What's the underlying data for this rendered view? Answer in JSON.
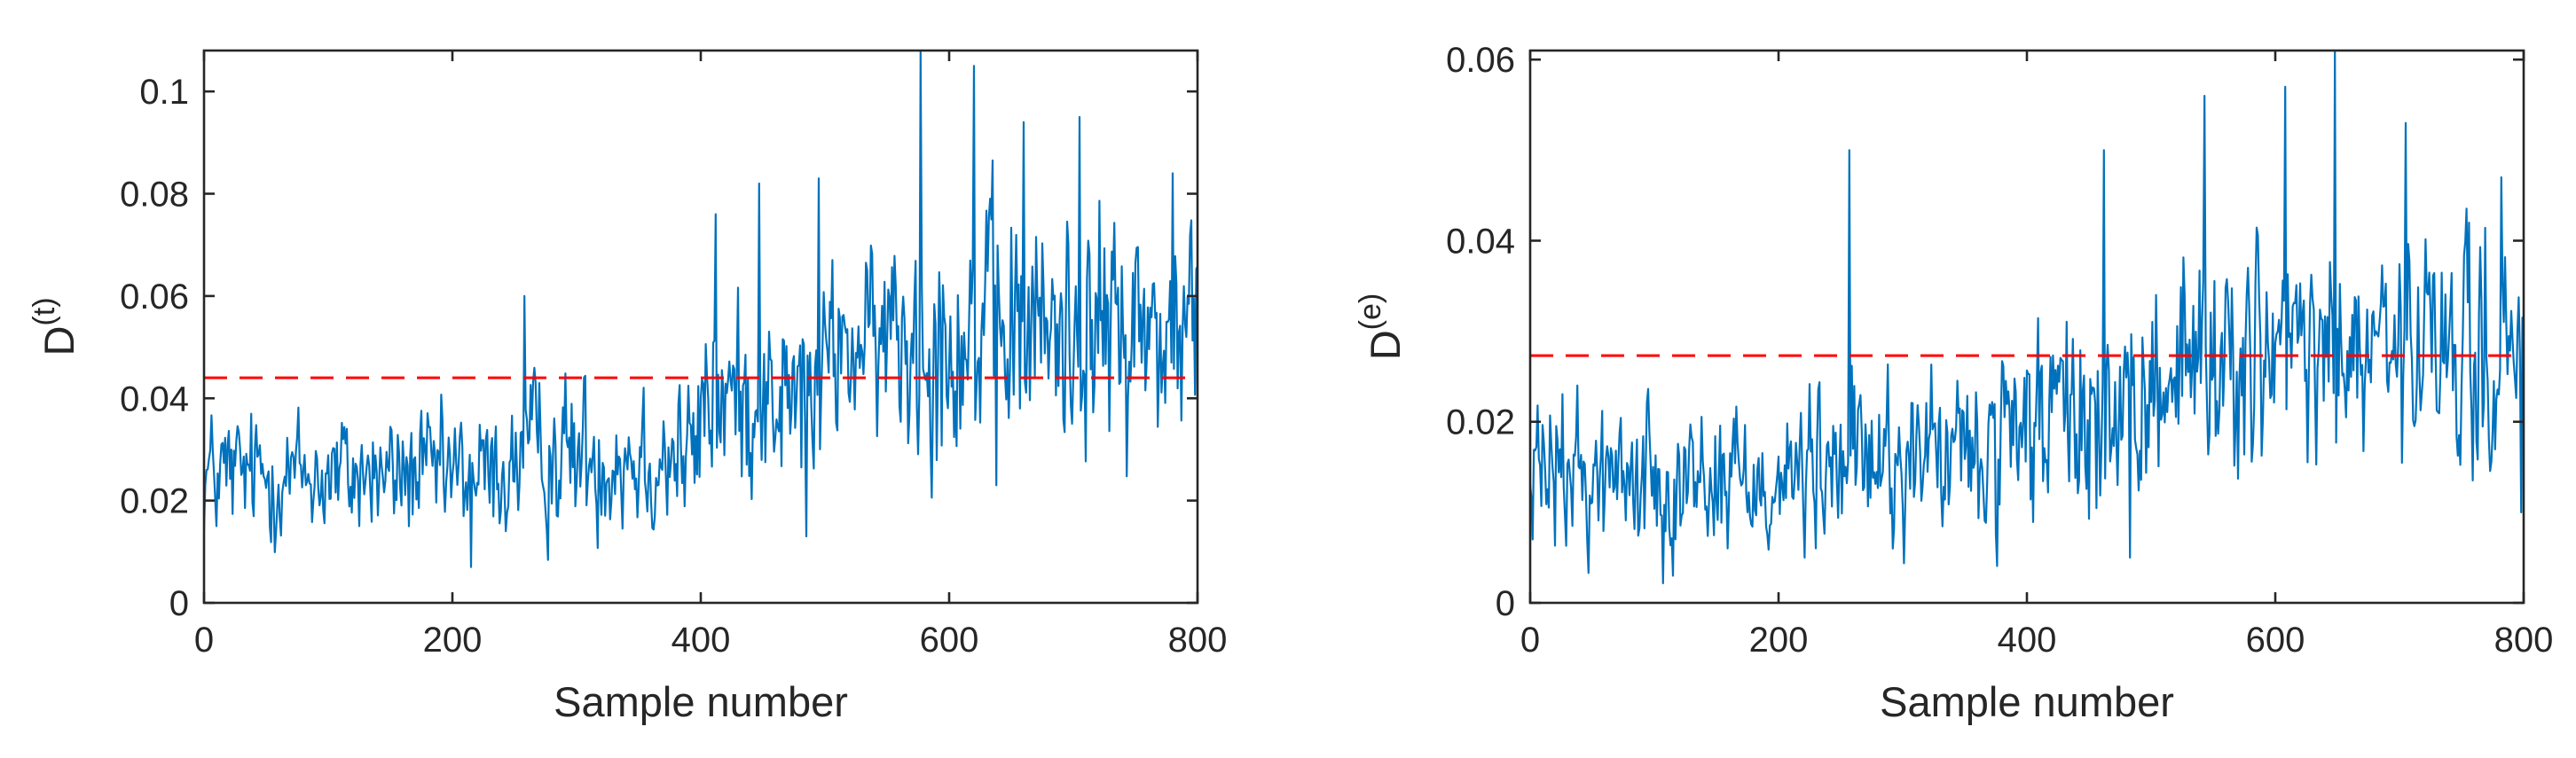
{
  "colors": {
    "series": "#0072BD",
    "threshold": "#FF0000",
    "axis": "#262626"
  },
  "chart_data": [
    {
      "type": "line",
      "xlabel": "Sample number",
      "ylabel": {
        "base": "D",
        "superscript": "(t)"
      },
      "xlim": [
        0,
        800
      ],
      "ylim": [
        0,
        0.108
      ],
      "xticks": [
        0,
        200,
        400,
        600,
        800
      ],
      "xtick_labels": [
        "0",
        "200",
        "400",
        "600",
        "800"
      ],
      "yticks": [
        0,
        0.02,
        0.04,
        0.06,
        0.08,
        0.1
      ],
      "ytick_labels": [
        "0",
        "0.02",
        "0.04",
        "0.06",
        "0.08",
        "0.1"
      ],
      "grid": false,
      "threshold": {
        "value": 0.044,
        "style": "dashed",
        "color": "#FF0000"
      },
      "series": [
        {
          "color": "#0072BD",
          "n_points": 801,
          "segments": [
            {
              "x0": 0,
              "x1": 250,
              "mean": 0.025,
              "spread": 0.009
            },
            {
              "x0": 250,
              "x1": 400,
              "mean": 0.029,
              "spread": 0.011
            },
            {
              "x0": 400,
              "x1": 500,
              "mean": 0.04,
              "spread": 0.013
            },
            {
              "x0": 500,
              "x1": 550,
              "mean": 0.05,
              "spread": 0.012
            },
            {
              "x0": 550,
              "x1": 800,
              "mean": 0.053,
              "spread": 0.017
            }
          ],
          "peaks": [
            {
              "x": 577,
              "y": 0.108
            },
            {
              "x": 620,
              "y": 0.105
            },
            {
              "x": 660,
              "y": 0.094
            },
            {
              "x": 705,
              "y": 0.095
            },
            {
              "x": 495,
              "y": 0.083
            },
            {
              "x": 412,
              "y": 0.076
            },
            {
              "x": 447,
              "y": 0.082
            },
            {
              "x": 258,
              "y": 0.06
            },
            {
              "x": 215,
              "y": 0.007
            },
            {
              "x": 485,
              "y": 0.013
            },
            {
              "x": 638,
              "y": 0.023
            },
            {
              "x": 780,
              "y": 0.084
            }
          ]
        }
      ]
    },
    {
      "type": "line",
      "xlabel": "Sample number",
      "ylabel": {
        "base": "D",
        "superscript": "(e)"
      },
      "xlim": [
        0,
        800
      ],
      "ylim": [
        0,
        0.061
      ],
      "xticks": [
        0,
        200,
        400,
        600,
        800
      ],
      "xtick_labels": [
        "0",
        "200",
        "400",
        "600",
        "800"
      ],
      "yticks": [
        0,
        0.02,
        0.04,
        0.06
      ],
      "ytick_labels": [
        "0",
        "0.02",
        "0.04",
        "0.06"
      ],
      "grid": false,
      "threshold": {
        "value": 0.0273,
        "style": "dashed",
        "color": "#FF0000"
      },
      "series": [
        {
          "color": "#0072BD",
          "n_points": 801,
          "segments": [
            {
              "x0": 0,
              "x1": 250,
              "mean": 0.014,
              "spread": 0.006
            },
            {
              "x0": 250,
              "x1": 400,
              "mean": 0.016,
              "spread": 0.007
            },
            {
              "x0": 400,
              "x1": 500,
              "mean": 0.02,
              "spread": 0.008
            },
            {
              "x0": 500,
              "x1": 800,
              "mean": 0.027,
              "spread": 0.009
            }
          ],
          "peaks": [
            {
              "x": 257,
              "y": 0.05
            },
            {
              "x": 462,
              "y": 0.05
            },
            {
              "x": 543,
              "y": 0.056
            },
            {
              "x": 608,
              "y": 0.057
            },
            {
              "x": 648,
              "y": 0.061
            },
            {
              "x": 705,
              "y": 0.053
            },
            {
              "x": 782,
              "y": 0.047
            },
            {
              "x": 483,
              "y": 0.005
            },
            {
              "x": 2,
              "y": 0.007
            },
            {
              "x": 798,
              "y": 0.01
            }
          ]
        }
      ]
    }
  ]
}
